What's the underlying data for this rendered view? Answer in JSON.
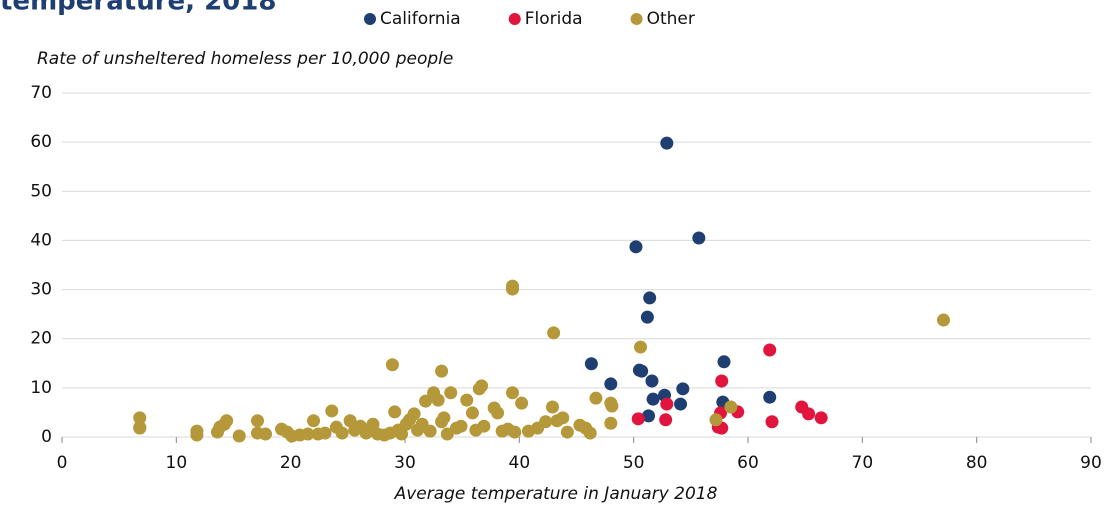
{
  "chart_data": {
    "type": "scatter",
    "title": "temperature, 2018",
    "y_label": "Rate of unsheltered homeless per 10,000 people",
    "x_label": "Average temperature in January 2018",
    "xlim": [
      0,
      90
    ],
    "xticks": [
      0,
      10,
      20,
      30,
      40,
      50,
      60,
      70,
      80,
      90
    ],
    "ylim": [
      0,
      70
    ],
    "yticks": [
      0,
      10,
      20,
      30,
      40,
      50,
      60,
      70
    ],
    "grid": true,
    "legend": "top",
    "series": [
      {
        "name": "California",
        "color": "#1f3f73",
        "x": [
          52.9,
          50.2,
          55.7,
          51.4,
          51.2,
          46.3,
          48.0,
          50.5,
          50.7,
          51.6,
          57.9,
          54.3,
          52.7,
          51.7,
          54.1,
          51.3,
          57.8,
          61.9
        ],
        "values": [
          59.8,
          38.7,
          40.5,
          28.3,
          24.4,
          14.9,
          10.8,
          13.6,
          13.4,
          11.4,
          15.3,
          9.8,
          8.5,
          7.7,
          6.7,
          4.3,
          7.1,
          8.1
        ]
      },
      {
        "name": "Florida",
        "color": "#e0143c",
        "x": [
          50.4,
          52.9,
          52.8,
          57.7,
          57.6,
          57.4,
          57.7,
          59.1,
          61.9,
          62.1,
          64.7,
          65.3,
          66.4
        ],
        "values": [
          3.7,
          6.7,
          3.5,
          11.4,
          4.9,
          2.0,
          1.8,
          5.1,
          17.7,
          3.1,
          6.1,
          4.7,
          3.9
        ]
      },
      {
        "name": "Other",
        "color": "#b5983a",
        "x": [
          77.1,
          39.4,
          39.4,
          43.0,
          50.6,
          28.9,
          33.2,
          58.5,
          57.2,
          6.8,
          6.8,
          6.8,
          11.8,
          11.8,
          13.6,
          13.8,
          14.2,
          14.4,
          15.5,
          17.1,
          17.1,
          17.8,
          19.2,
          19.7,
          20.1,
          20.8,
          21.5,
          22.0,
          22.4,
          23.0,
          23.6,
          24.0,
          24.5,
          25.2,
          25.6,
          26.1,
          26.6,
          27.2,
          27.6,
          28.2,
          28.7,
          29.1,
          29.4,
          29.7,
          30.1,
          30.4,
          30.8,
          31.1,
          31.5,
          31.8,
          32.2,
          32.5,
          32.9,
          33.2,
          33.4,
          33.7,
          34.0,
          34.5,
          34.9,
          35.4,
          35.9,
          36.2,
          36.5,
          36.7,
          36.9,
          37.8,
          38.1,
          38.5,
          39.0,
          39.4,
          39.6,
          40.2,
          40.8,
          41.6,
          42.3,
          42.9,
          43.3,
          43.8,
          44.2,
          45.3,
          45.8,
          46.2,
          46.7,
          48.0,
          48.1,
          48.0
        ],
        "values": [
          23.8,
          30.7,
          30.1,
          21.2,
          18.3,
          14.7,
          13.4,
          6.1,
          3.5,
          3.9,
          1.8,
          2.0,
          1.2,
          0.4,
          1.0,
          2.0,
          2.6,
          3.3,
          0.2,
          3.3,
          0.8,
          0.6,
          1.6,
          1.0,
          0.2,
          0.4,
          0.6,
          3.3,
          0.6,
          0.8,
          5.3,
          2.0,
          0.8,
          3.3,
          1.4,
          2.2,
          0.8,
          2.6,
          0.6,
          0.4,
          0.8,
          5.1,
          1.4,
          0.6,
          2.6,
          3.5,
          4.7,
          1.4,
          2.6,
          7.3,
          1.2,
          9.0,
          7.5,
          3.1,
          3.9,
          0.6,
          9.0,
          1.8,
          2.2,
          7.5,
          4.9,
          1.4,
          9.8,
          10.4,
          2.2,
          5.9,
          4.9,
          1.2,
          1.6,
          9.0,
          1.0,
          6.9,
          1.2,
          1.8,
          3.1,
          6.1,
          3.3,
          3.9,
          1.0,
          2.4,
          1.8,
          0.8,
          7.9,
          6.9,
          6.3,
          2.8
        ]
      }
    ]
  }
}
